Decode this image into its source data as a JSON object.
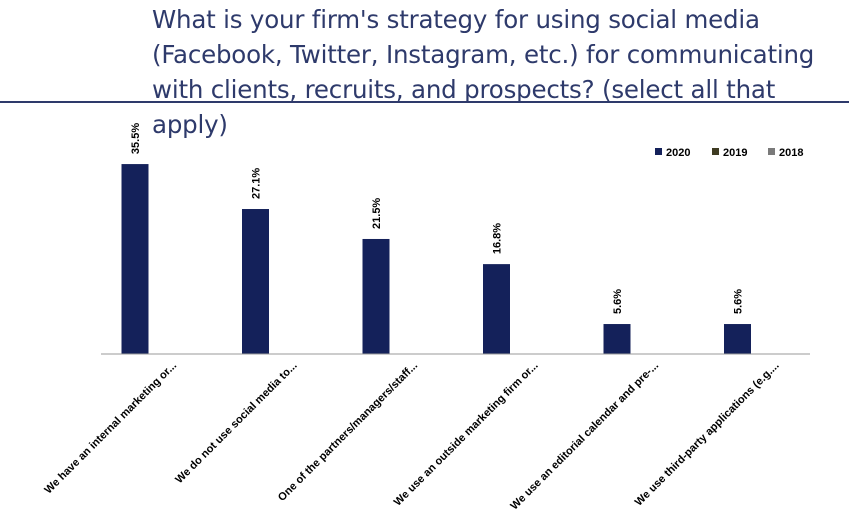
{
  "header": {
    "question_lines": [
      "What is your firm's strategy for using social media",
      "(Facebook, Twitter, Instagram, etc.) for communicating",
      "with clients, recruits, and prospects? (select all that apply)"
    ]
  },
  "chart_data": {
    "type": "bar",
    "title": "",
    "xlabel": "",
    "ylabel": "",
    "ylim": [
      0,
      40
    ],
    "grid": false,
    "legend_position": "top-right",
    "categories": [
      "We have an internal marketing or...",
      "We do not use social media to...",
      "One of the partners/managers/staff...",
      "We use an outside marketing firm or...",
      "We use an editorial calendar and pre-...",
      "We use third-party applications (e.g...."
    ],
    "series": [
      {
        "name": "2020",
        "color": "#14215a",
        "values": [
          35.5,
          27.1,
          21.5,
          16.8,
          5.6,
          5.6
        ],
        "labels": [
          "35.5%",
          "27.1%",
          "21.5%",
          "16.8%",
          "5.6%",
          "5.6%"
        ]
      },
      {
        "name": "2019",
        "color": "#3e3b22",
        "values": [
          null,
          null,
          null,
          null,
          null,
          null
        ],
        "labels": []
      },
      {
        "name": "2018",
        "color": "#7a7a7a",
        "values": [
          null,
          null,
          null,
          null,
          null,
          null
        ],
        "labels": []
      }
    ]
  }
}
